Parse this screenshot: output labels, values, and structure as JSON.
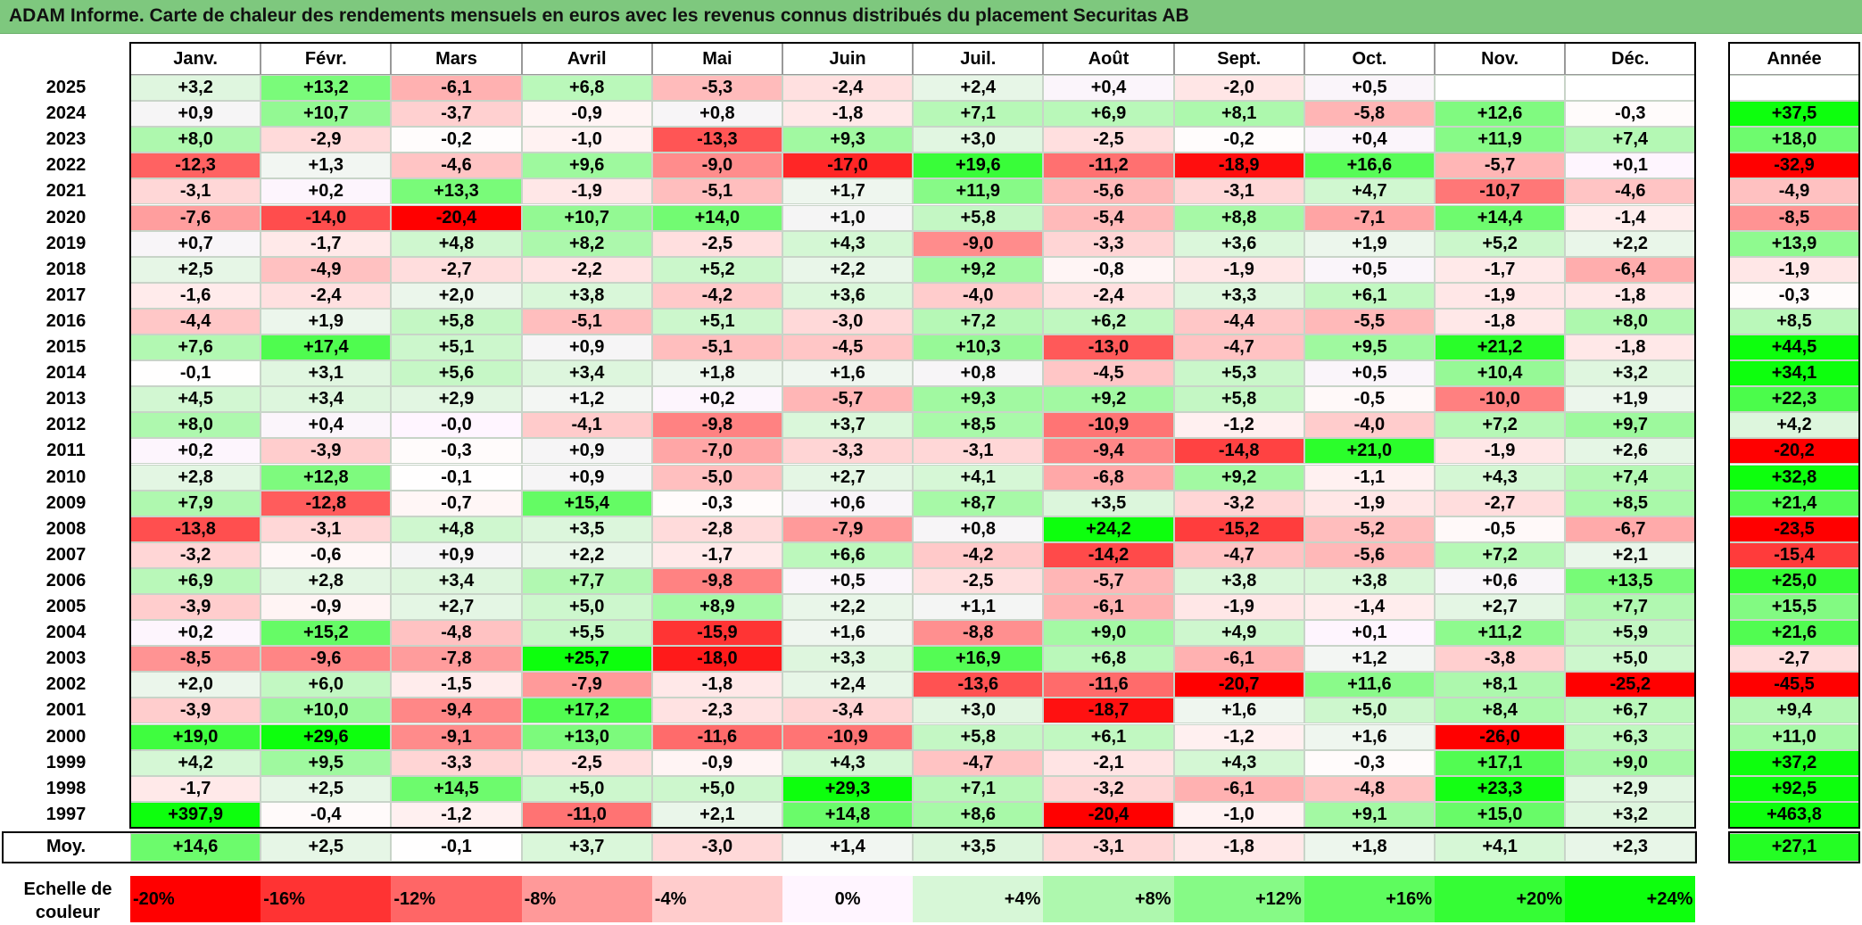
{
  "title": "ADAM Informe. Carte de chaleur des rendements mensuels en euros avec les revenus connus distribués du placement Securitas AB",
  "chart_data": {
    "type": "heatmap",
    "title": "ADAM Informe. Carte de chaleur des rendements mensuels en euros avec les revenus connus distribués du placement Securitas AB",
    "columns": [
      "Janv.",
      "Févr.",
      "Mars",
      "Avril",
      "Mai",
      "Juin",
      "Juil.",
      "Août",
      "Sept.",
      "Oct.",
      "Nov.",
      "Déc."
    ],
    "year_header": "Année",
    "rows": [
      {
        "year": "2025",
        "values": [
          "+3,2",
          "+13,2",
          "-6,1",
          "+6,8",
          "-5,3",
          "-2,4",
          "+2,4",
          "+0,4",
          "-2,0",
          "+0,5",
          "",
          ""
        ],
        "annual": ""
      },
      {
        "year": "2024",
        "values": [
          "+0,9",
          "+10,7",
          "-3,7",
          "-0,9",
          "+0,8",
          "-1,8",
          "+7,1",
          "+6,9",
          "+8,1",
          "-5,8",
          "+12,6",
          "-0,3"
        ],
        "annual": "+37,5"
      },
      {
        "year": "2023",
        "values": [
          "+8,0",
          "-2,9",
          "-0,2",
          "-1,0",
          "-13,3",
          "+9,3",
          "+3,0",
          "-2,5",
          "-0,2",
          "+0,4",
          "+11,9",
          "+7,4"
        ],
        "annual": "+18,0"
      },
      {
        "year": "2022",
        "values": [
          "-12,3",
          "+1,3",
          "-4,6",
          "+9,6",
          "-9,0",
          "-17,0",
          "+19,6",
          "-11,2",
          "-18,9",
          "+16,6",
          "-5,7",
          "+0,1"
        ],
        "annual": "-32,9"
      },
      {
        "year": "2021",
        "values": [
          "-3,1",
          "+0,2",
          "+13,3",
          "-1,9",
          "-5,1",
          "+1,7",
          "+11,9",
          "-5,6",
          "-3,1",
          "+4,7",
          "-10,7",
          "-4,6"
        ],
        "annual": "-4,9"
      },
      {
        "year": "2020",
        "values": [
          "-7,6",
          "-14,0",
          "-20,4",
          "+10,7",
          "+14,0",
          "+1,0",
          "+5,8",
          "-5,4",
          "+8,8",
          "-7,1",
          "+14,4",
          "-1,4"
        ],
        "annual": "-8,5"
      },
      {
        "year": "2019",
        "values": [
          "+0,7",
          "-1,7",
          "+4,8",
          "+8,2",
          "-2,5",
          "+4,3",
          "-9,0",
          "-3,3",
          "+3,6",
          "+1,9",
          "+5,2",
          "+2,2"
        ],
        "annual": "+13,9"
      },
      {
        "year": "2018",
        "values": [
          "+2,5",
          "-4,9",
          "-2,7",
          "-2,2",
          "+5,2",
          "+2,2",
          "+9,2",
          "-0,8",
          "-1,9",
          "+0,5",
          "-1,7",
          "-6,4"
        ],
        "annual": "-1,9"
      },
      {
        "year": "2017",
        "values": [
          "-1,6",
          "-2,4",
          "+2,0",
          "+3,8",
          "-4,2",
          "+3,6",
          "-4,0",
          "-2,4",
          "+3,3",
          "+6,1",
          "-1,9",
          "-1,8"
        ],
        "annual": "-0,3"
      },
      {
        "year": "2016",
        "values": [
          "-4,4",
          "+1,9",
          "+5,8",
          "-5,1",
          "+5,1",
          "-3,0",
          "+7,2",
          "+6,2",
          "-4,4",
          "-5,5",
          "-1,8",
          "+8,0"
        ],
        "annual": "+8,5"
      },
      {
        "year": "2015",
        "values": [
          "+7,6",
          "+17,4",
          "+5,1",
          "+0,9",
          "-5,1",
          "-4,5",
          "+10,3",
          "-13,0",
          "-4,7",
          "+9,5",
          "+21,2",
          "-1,8"
        ],
        "annual": "+44,5"
      },
      {
        "year": "2014",
        "values": [
          "-0,1",
          "+3,1",
          "+5,6",
          "+3,4",
          "+1,8",
          "+1,6",
          "+0,8",
          "-4,5",
          "+5,3",
          "+0,5",
          "+10,4",
          "+3,2"
        ],
        "annual": "+34,1"
      },
      {
        "year": "2013",
        "values": [
          "+4,5",
          "+3,4",
          "+2,9",
          "+1,2",
          "+0,2",
          "-5,7",
          "+9,3",
          "+9,2",
          "+5,8",
          "-0,5",
          "-10,0",
          "+1,9"
        ],
        "annual": "+22,3"
      },
      {
        "year": "2012",
        "values": [
          "+8,0",
          "+0,4",
          "-0,0",
          "-4,1",
          "-9,8",
          "+3,7",
          "+8,5",
          "-10,9",
          "-1,2",
          "-4,0",
          "+7,2",
          "+9,7"
        ],
        "annual": "+4,2"
      },
      {
        "year": "2011",
        "values": [
          "+0,2",
          "-3,9",
          "-0,3",
          "+0,9",
          "-7,0",
          "-3,3",
          "-3,1",
          "-9,4",
          "-14,8",
          "+21,0",
          "-1,9",
          "+2,6"
        ],
        "annual": "-20,2"
      },
      {
        "year": "2010",
        "values": [
          "+2,8",
          "+12,8",
          "-0,1",
          "+0,9",
          "-5,0",
          "+2,7",
          "+4,1",
          "-6,8",
          "+9,2",
          "-1,1",
          "+4,3",
          "+7,4"
        ],
        "annual": "+32,8"
      },
      {
        "year": "2009",
        "values": [
          "+7,9",
          "-12,8",
          "-0,7",
          "+15,4",
          "-0,3",
          "+0,6",
          "+8,7",
          "+3,5",
          "-3,2",
          "-1,9",
          "-2,7",
          "+8,5"
        ],
        "annual": "+21,4"
      },
      {
        "year": "2008",
        "values": [
          "-13,8",
          "-3,1",
          "+4,8",
          "+3,5",
          "-2,8",
          "-7,9",
          "+0,8",
          "+24,2",
          "-15,2",
          "-5,2",
          "-0,5",
          "-6,7"
        ],
        "annual": "-23,5"
      },
      {
        "year": "2007",
        "values": [
          "-3,2",
          "-0,6",
          "+0,9",
          "+2,2",
          "-1,7",
          "+6,6",
          "-4,2",
          "-14,2",
          "-4,7",
          "-5,6",
          "+7,2",
          "+2,1"
        ],
        "annual": "-15,4"
      },
      {
        "year": "2006",
        "values": [
          "+6,9",
          "+2,8",
          "+3,4",
          "+7,7",
          "-9,8",
          "+0,5",
          "-2,5",
          "-5,7",
          "+3,8",
          "+3,8",
          "+0,6",
          "+13,5"
        ],
        "annual": "+25,0"
      },
      {
        "year": "2005",
        "values": [
          "-3,9",
          "-0,9",
          "+2,7",
          "+5,0",
          "+8,9",
          "+2,2",
          "+1,1",
          "-6,1",
          "-1,9",
          "-1,4",
          "+2,7",
          "+7,7"
        ],
        "annual": "+15,5"
      },
      {
        "year": "2004",
        "values": [
          "+0,2",
          "+15,2",
          "-4,8",
          "+5,5",
          "-15,9",
          "+1,6",
          "-8,8",
          "+9,0",
          "+4,9",
          "+0,1",
          "+11,2",
          "+5,9"
        ],
        "annual": "+21,6"
      },
      {
        "year": "2003",
        "values": [
          "-8,5",
          "-9,6",
          "-7,8",
          "+25,7",
          "-18,0",
          "+3,3",
          "+16,9",
          "+6,8",
          "-6,1",
          "+1,2",
          "-3,8",
          "+5,0"
        ],
        "annual": "-2,7"
      },
      {
        "year": "2002",
        "values": [
          "+2,0",
          "+6,0",
          "-1,5",
          "-7,9",
          "-1,8",
          "+2,4",
          "-13,6",
          "-11,6",
          "-20,7",
          "+11,6",
          "+8,1",
          "-25,2"
        ],
        "annual": "-45,5"
      },
      {
        "year": "2001",
        "values": [
          "-3,9",
          "+10,0",
          "-9,4",
          "+17,2",
          "-2,3",
          "-3,4",
          "+3,0",
          "-18,7",
          "+1,6",
          "+5,0",
          "+8,4",
          "+6,7"
        ],
        "annual": "+9,4"
      },
      {
        "year": "2000",
        "values": [
          "+19,0",
          "+29,6",
          "-9,1",
          "+13,0",
          "-11,6",
          "-10,9",
          "+5,8",
          "+6,1",
          "-1,2",
          "+1,6",
          "-26,0",
          "+6,3"
        ],
        "annual": "+11,0"
      },
      {
        "year": "1999",
        "values": [
          "+4,2",
          "+9,5",
          "-3,3",
          "-2,5",
          "-0,9",
          "+4,3",
          "-4,7",
          "-2,1",
          "+4,3",
          "-0,3",
          "+17,1",
          "+9,0"
        ],
        "annual": "+37,2"
      },
      {
        "year": "1998",
        "values": [
          "-1,7",
          "+2,5",
          "+14,5",
          "+5,0",
          "+5,0",
          "+29,3",
          "+7,1",
          "-3,2",
          "-6,1",
          "-4,8",
          "+23,3",
          "+2,9"
        ],
        "annual": "+92,5"
      },
      {
        "year": "1997",
        "values": [
          "+397,9",
          "-0,4",
          "-1,2",
          "-11,0",
          "+2,1",
          "+14,8",
          "+8,6",
          "-20,4",
          "-1,0",
          "+9,1",
          "+15,0",
          "+3,2"
        ],
        "annual": "+463,8"
      }
    ],
    "average_label": "Moy.",
    "average_values": [
      "+14,6",
      "+2,5",
      "-0,1",
      "+3,7",
      "-3,0",
      "+1,4",
      "+3,5",
      "-3,1",
      "-1,8",
      "+1,8",
      "+4,1",
      "+2,3"
    ],
    "average_annual": "+27,1",
    "scale_label_line1": "Echelle de",
    "scale_label_line2": "couleur",
    "scale": [
      "-20%",
      "-16%",
      "-12%",
      "-8%",
      "-4%",
      "0%",
      "+4%",
      "+8%",
      "+12%",
      "+16%",
      "+20%",
      "+24%"
    ],
    "colors": {
      "negative_max": "#ff0000",
      "neutral": "#ffffff",
      "positive_max": "#00ff00"
    }
  }
}
